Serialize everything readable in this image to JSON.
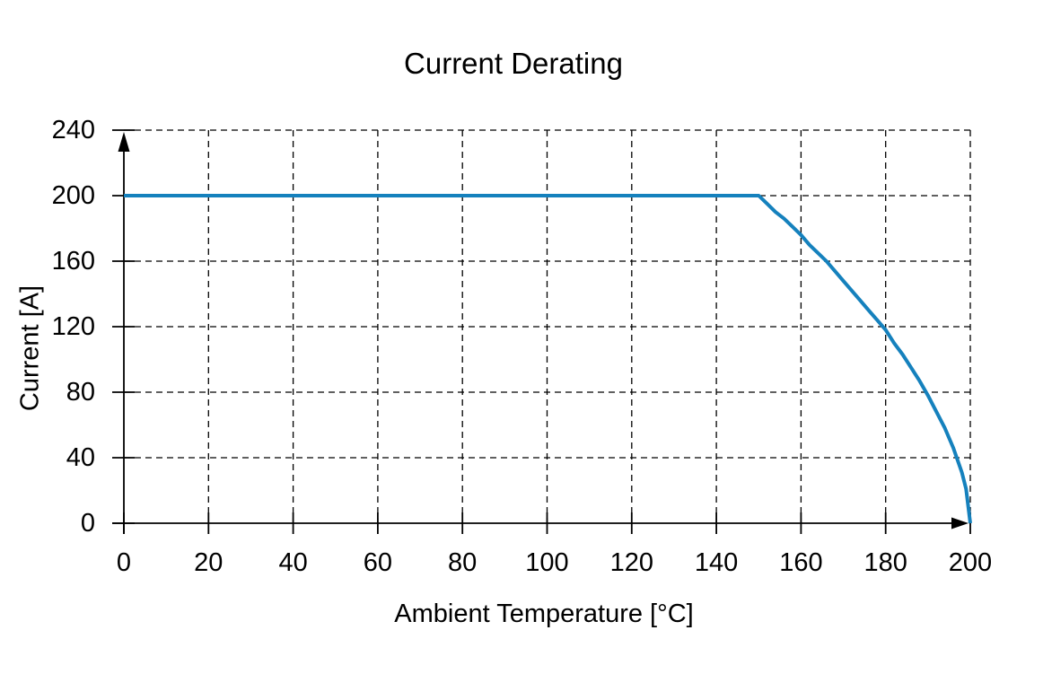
{
  "figure": {
    "background": "#ffffff",
    "text_color": "#000000"
  },
  "chart_data": {
    "type": "line",
    "title": "Current Derating",
    "xlabel": "Ambient Temperature [°C]",
    "ylabel": "Current [A]",
    "xlim": [
      0,
      200
    ],
    "ylim": [
      0,
      240
    ],
    "x_ticks": [
      0,
      20,
      40,
      60,
      80,
      100,
      120,
      140,
      160,
      180,
      200
    ],
    "y_ticks": [
      0,
      40,
      80,
      120,
      160,
      200,
      240
    ],
    "grid": {
      "visible": true,
      "style": "dashed",
      "color": "#000000"
    },
    "axes": {
      "color": "#000000",
      "arrows": true
    },
    "legend": "none",
    "series": [
      {
        "name": "derated-current-limit",
        "color": "#1581bd",
        "description": "Constant 200 A up to 150 °C, then nonlinear derating to 0 A at 200 °C",
        "points": [
          [
            0,
            200
          ],
          [
            150,
            200
          ],
          [
            152,
            195
          ],
          [
            154,
            190
          ],
          [
            156,
            186
          ],
          [
            158,
            181
          ],
          [
            160,
            176
          ],
          [
            162,
            170
          ],
          [
            164,
            165
          ],
          [
            166,
            160
          ],
          [
            168,
            154
          ],
          [
            170,
            148
          ],
          [
            172,
            142
          ],
          [
            174,
            136
          ],
          [
            176,
            130
          ],
          [
            178,
            124
          ],
          [
            180,
            118
          ],
          [
            182,
            110
          ],
          [
            184,
            103
          ],
          [
            186,
            95
          ],
          [
            188,
            87
          ],
          [
            190,
            78
          ],
          [
            192,
            68
          ],
          [
            194,
            58
          ],
          [
            196,
            46
          ],
          [
            198,
            31
          ],
          [
            199,
            21
          ],
          [
            200,
            0
          ]
        ]
      }
    ]
  }
}
